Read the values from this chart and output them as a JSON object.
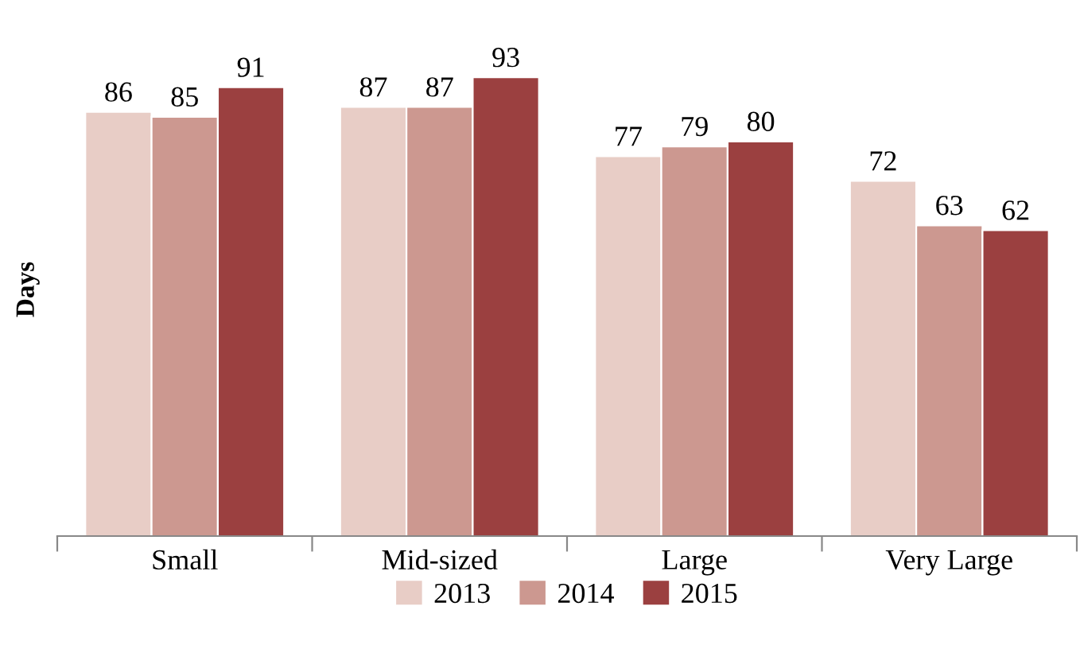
{
  "chart_data": {
    "type": "bar",
    "ylabel": "Days",
    "categories": [
      "Small",
      "Mid-sized",
      "Large",
      "Very Large"
    ],
    "series": [
      {
        "name": "2013",
        "color": "#e8cdc6",
        "values": [
          86,
          87,
          77,
          72
        ]
      },
      {
        "name": "2014",
        "color": "#cc9890",
        "values": [
          85,
          87,
          79,
          63
        ]
      },
      {
        "name": "2015",
        "color": "#9b4040",
        "values": [
          91,
          93,
          80,
          62
        ]
      }
    ],
    "data_labels": true,
    "legend": "bottom",
    "grid": false
  }
}
